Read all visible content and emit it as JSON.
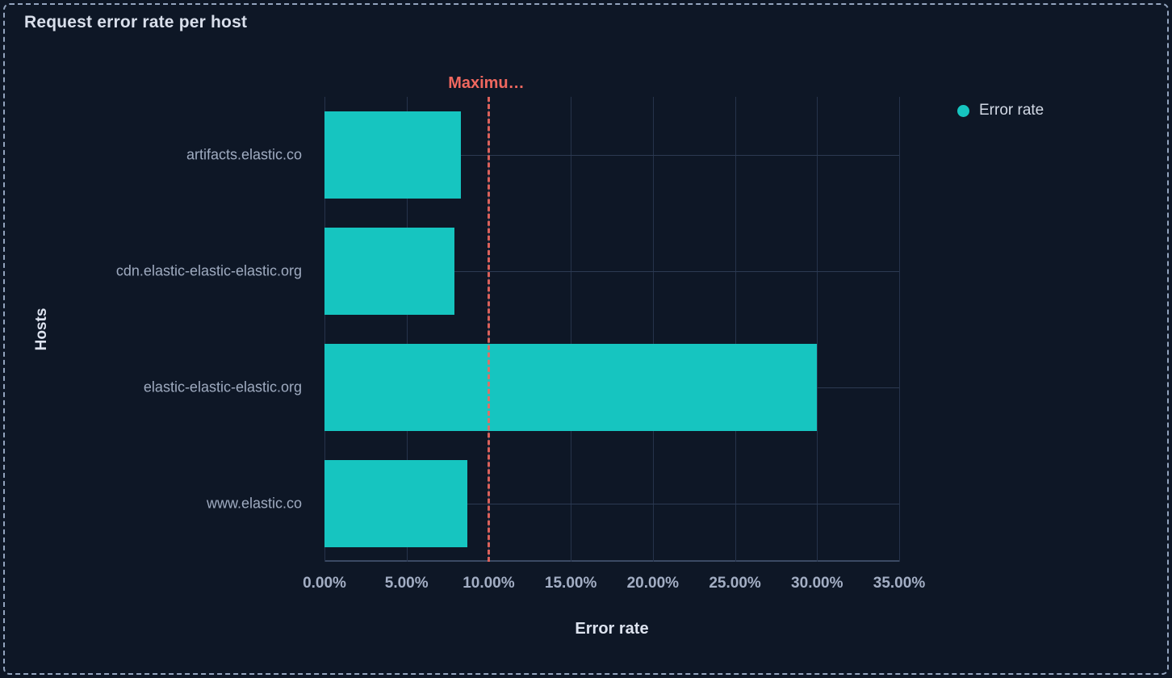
{
  "panel": {
    "title": "Request error rate per host"
  },
  "legend": {
    "items": [
      {
        "label": "Error rate",
        "color": "#16c5c0"
      }
    ]
  },
  "chart_data": {
    "type": "bar",
    "orientation": "horizontal",
    "title": "Request error rate per host",
    "categories": [
      "artifacts.elastic.co",
      "cdn.elastic-elastic-elastic.org",
      "elastic-elastic-elastic.org",
      "www.elastic.co"
    ],
    "series": [
      {
        "name": "Error rate",
        "color": "#16c5c0",
        "values": [
          8.3,
          7.9,
          30,
          8.7
        ]
      }
    ],
    "value_unit": "%",
    "xlabel": "Error rate",
    "ylabel": "Hosts",
    "xlim": [
      0,
      35
    ],
    "x_tick_values": [
      0,
      5,
      10,
      15,
      20,
      25,
      30,
      35
    ],
    "x_tick_labels": [
      "0.00%",
      "5.00%",
      "10.00%",
      "15.00%",
      "20.00%",
      "25.00%",
      "30.00%",
      "35.00%"
    ],
    "grid": true,
    "legend_position": "right",
    "annotation": {
      "label": "Maximu…",
      "value": 10,
      "color": "#f0685f",
      "style": "dashed"
    }
  },
  "colors": {
    "background": "#0e1726",
    "bar": "#16c5c0",
    "annotation": "#f0685f",
    "panel_border": "#93a4be",
    "gridline": "#26334b",
    "text_bright": "#dde3ef",
    "text_muted": "#9fabc0"
  }
}
